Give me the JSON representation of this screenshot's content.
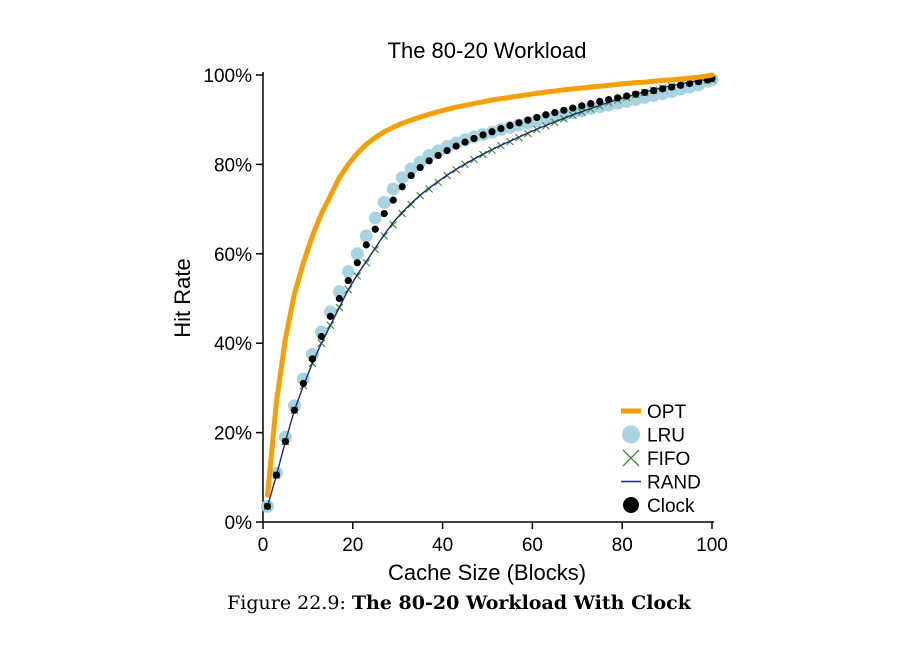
{
  "chart_data": {
    "type": "line",
    "title": "The 80-20 Workload",
    "xlabel": "Cache Size (Blocks)",
    "ylabel": "Hit Rate",
    "xlim": [
      0,
      100
    ],
    "ylim": [
      0,
      100
    ],
    "x_ticks": [
      "0",
      "20",
      "40",
      "60",
      "80",
      "100"
    ],
    "y_ticks": [
      "0%",
      "20%",
      "40%",
      "60%",
      "80%",
      "100%"
    ],
    "grid": false,
    "legend_position": "bottom-right",
    "x": [
      1,
      3,
      5,
      7,
      9,
      11,
      13,
      15,
      17,
      19,
      21,
      23,
      25,
      27,
      29,
      31,
      33,
      35,
      37,
      39,
      41,
      43,
      45,
      47,
      49,
      51,
      53,
      55,
      57,
      59,
      61,
      63,
      65,
      67,
      69,
      71,
      73,
      75,
      77,
      79,
      81,
      83,
      85,
      87,
      89,
      91,
      93,
      95,
      97,
      99,
      100
    ],
    "series": [
      {
        "name": "OPT",
        "color": "#f5a000",
        "marker": "line",
        "values": [
          6,
          27,
          41,
          51,
          58,
          64,
          69,
          73,
          77,
          80,
          82.5,
          84.5,
          86,
          87.3,
          88.3,
          89.2,
          89.9,
          90.6,
          91.2,
          91.8,
          92.3,
          92.8,
          93.2,
          93.6,
          94.0,
          94.4,
          94.7,
          95.0,
          95.3,
          95.6,
          95.9,
          96.2,
          96.4,
          96.7,
          96.9,
          97.1,
          97.3,
          97.5,
          97.7,
          97.9,
          98.1,
          98.3,
          98.4,
          98.6,
          98.8,
          98.9,
          99.1,
          99.3,
          99.5,
          99.8,
          100
        ]
      },
      {
        "name": "LRU",
        "color": "#a8d4e2",
        "marker": "circle",
        "values": [
          3.5,
          11,
          19,
          26,
          32,
          37.5,
          42.5,
          47,
          51.5,
          56,
          60,
          64,
          68,
          71.5,
          74.5,
          77,
          79,
          80.5,
          82,
          83,
          84,
          84.8,
          85.5,
          86.1,
          86.7,
          87.2,
          87.8,
          88.3,
          88.8,
          89.3,
          89.8,
          90.2,
          90.7,
          91.1,
          91.6,
          92.0,
          92.5,
          92.9,
          93.3,
          93.7,
          94.1,
          94.5,
          95.0,
          95.4,
          95.8,
          96.3,
          96.8,
          97.3,
          97.8,
          98.6,
          99
        ]
      },
      {
        "name": "FIFO",
        "color": "#3a8a2e",
        "marker": "x",
        "values": [
          3.5,
          10.5,
          18,
          25,
          30.5,
          35.5,
          40,
          44,
          48,
          52,
          55,
          58,
          61,
          64,
          66.5,
          69,
          71,
          73,
          74.5,
          76,
          77.5,
          78.8,
          80,
          81.1,
          82.2,
          83.2,
          84.2,
          85.1,
          86,
          86.9,
          87.8,
          88.6,
          89.4,
          90.2,
          91,
          91.7,
          92.4,
          93.1,
          93.8,
          94.4,
          95,
          95.6,
          96.1,
          96.6,
          97.1,
          97.5,
          97.9,
          98.3,
          98.6,
          98.9,
          99
        ]
      },
      {
        "name": "RAND",
        "color": "#1c2a78",
        "marker": "line",
        "values": [
          3.5,
          10.5,
          18,
          25,
          30.5,
          35.5,
          40,
          44,
          48,
          52,
          55.3,
          58.3,
          61.3,
          64.3,
          67,
          69.3,
          71.3,
          73.1,
          74.7,
          76.2,
          77.6,
          78.9,
          80.1,
          81.2,
          82.3,
          83.3,
          84.3,
          85.2,
          86.1,
          87,
          87.9,
          88.7,
          89.5,
          90.3,
          91.1,
          91.8,
          92.5,
          93.2,
          93.9,
          94.5,
          95.1,
          95.7,
          96.2,
          96.7,
          97.2,
          97.6,
          98,
          98.4,
          98.7,
          99,
          99.2
        ]
      },
      {
        "name": "Clock",
        "color": "#000000",
        "marker": "dot",
        "values": [
          3.5,
          10.5,
          18,
          25,
          31,
          36.5,
          41.5,
          46,
          50,
          54,
          58,
          62,
          65.5,
          69,
          72,
          75,
          77.5,
          79.3,
          80.8,
          82,
          83.1,
          84.1,
          85,
          85.8,
          86.6,
          87.3,
          88,
          88.7,
          89.3,
          89.9,
          90.5,
          91.1,
          91.6,
          92.1,
          92.6,
          93.1,
          93.6,
          94.1,
          94.5,
          94.9,
          95.3,
          95.7,
          96.1,
          96.5,
          96.9,
          97.3,
          97.7,
          98.1,
          98.5,
          98.9,
          99.2
        ]
      }
    ]
  },
  "caption": {
    "prefix": "Figure 22.9: ",
    "title": "The 80-20 Workload With Clock"
  }
}
